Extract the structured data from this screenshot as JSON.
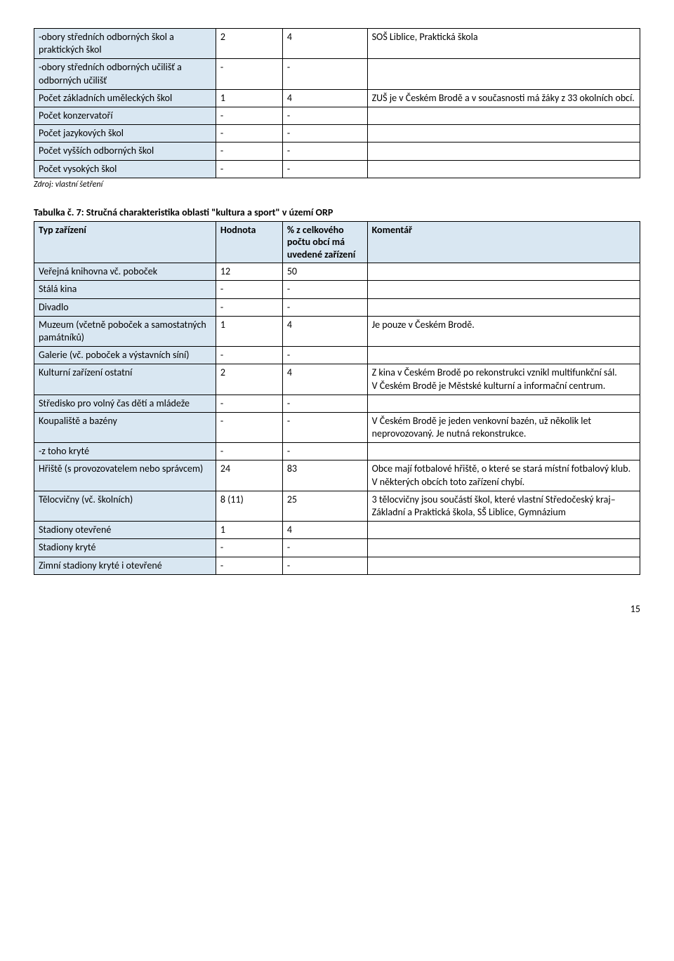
{
  "table1": {
    "rows": [
      {
        "label": "-obory středních odborných škol a praktických škol",
        "hodnota": "2",
        "pct": "4",
        "komentar": "SOŠ Liblice, Praktická škola"
      },
      {
        "label": "-obory středních odborných učilišť a odborných učilišť",
        "hodnota": "-",
        "pct": "-",
        "komentar": ""
      },
      {
        "label": "Počet základních uměleckých škol",
        "hodnota": "1",
        "pct": "4",
        "komentar": "ZUŠ je v Českém Brodě a v současnosti má žáky z 33 okolních obcí."
      },
      {
        "label": "Počet konzervatoří",
        "hodnota": "-",
        "pct": "-",
        "komentar": ""
      },
      {
        "label": "Počet jazykových škol",
        "hodnota": "-",
        "pct": "-",
        "komentar": ""
      },
      {
        "label": "Počet vyšších odborných škol",
        "hodnota": "-",
        "pct": "-",
        "komentar": ""
      },
      {
        "label": "Počet vysokých škol",
        "hodnota": "-",
        "pct": "-",
        "komentar": ""
      }
    ],
    "source": "Zdroj: vlastní šetření"
  },
  "table2": {
    "caption": "Tabulka č. 7: Stručná charakteristika oblasti \"kultura a sport\" v území ORP",
    "headers": [
      "Typ zařízení",
      "Hodnota",
      "% z celkového počtu obcí má uvedené zařízení",
      "Komentář"
    ],
    "rows": [
      {
        "label": "Veřejná knihovna vč. poboček",
        "hodnota": "12",
        "pct": "50",
        "komentar": ""
      },
      {
        "label": "Stálá kina",
        "hodnota": "-",
        "pct": "-",
        "komentar": ""
      },
      {
        "label": "Divadlo",
        "hodnota": "-",
        "pct": "-",
        "komentar": ""
      },
      {
        "label": "Muzeum (včetně poboček a samostatných památníků)",
        "hodnota": "1",
        "pct": "4",
        "komentar": "Je pouze v Českém  Brodě."
      },
      {
        "label": "Galerie (vč. poboček a výstavních síní)",
        "hodnota": "-",
        "pct": "-",
        "komentar": ""
      },
      {
        "label": "Kulturní zařízení ostatní",
        "hodnota": "2",
        "pct": "4",
        "komentar": "Z kina v Českém Brodě  po  rekonstrukci vznikl multifunkční sál.\nV Českém Brodě je Městské kulturní a informační centrum."
      },
      {
        "label": "Středisko pro volný čas dětí a mládeže",
        "hodnota": "-",
        "pct": "-",
        "komentar": ""
      },
      {
        "label": "Koupaliště a bazény",
        "hodnota": "-",
        "pct": "-",
        "komentar": "V Českém Brodě je jeden venkovní bazén, už několik let neprovozovaný. Je nutná rekonstrukce."
      },
      {
        "label": "-z toho kryté",
        "hodnota": "-",
        "pct": "-",
        "komentar": ""
      },
      {
        "label": "Hřiště (s provozovatelem nebo správcem)",
        "hodnota": "24",
        "pct": "83",
        "komentar": "Obce mají fotbalové hřiště, o které se stará místní fotbalový klub.\nV některých obcích toto zařízení chybí."
      },
      {
        "label": "Tělocvičny (vč. školních)",
        "hodnota": "8 (11)",
        "pct": "25",
        "komentar": "3 tělocvičny jsou součástí škol, které vlastní Středočeský kraj–Základní a Praktická škola, SŠ Liblice, Gymnázium"
      },
      {
        "label": "Stadiony otevřené",
        "hodnota": "1",
        "pct": "4",
        "komentar": ""
      },
      {
        "label": "Stadiony kryté",
        "hodnota": "-",
        "pct": "-",
        "komentar": ""
      },
      {
        "label": "Zimní stadiony kryté i otevřené",
        "hodnota": "-",
        "pct": "-",
        "komentar": ""
      }
    ]
  },
  "page_number": "15",
  "colors": {
    "header_bg": "#d9e7f2",
    "border": "#000000",
    "text": "#000000",
    "page_bg": "#ffffff"
  }
}
